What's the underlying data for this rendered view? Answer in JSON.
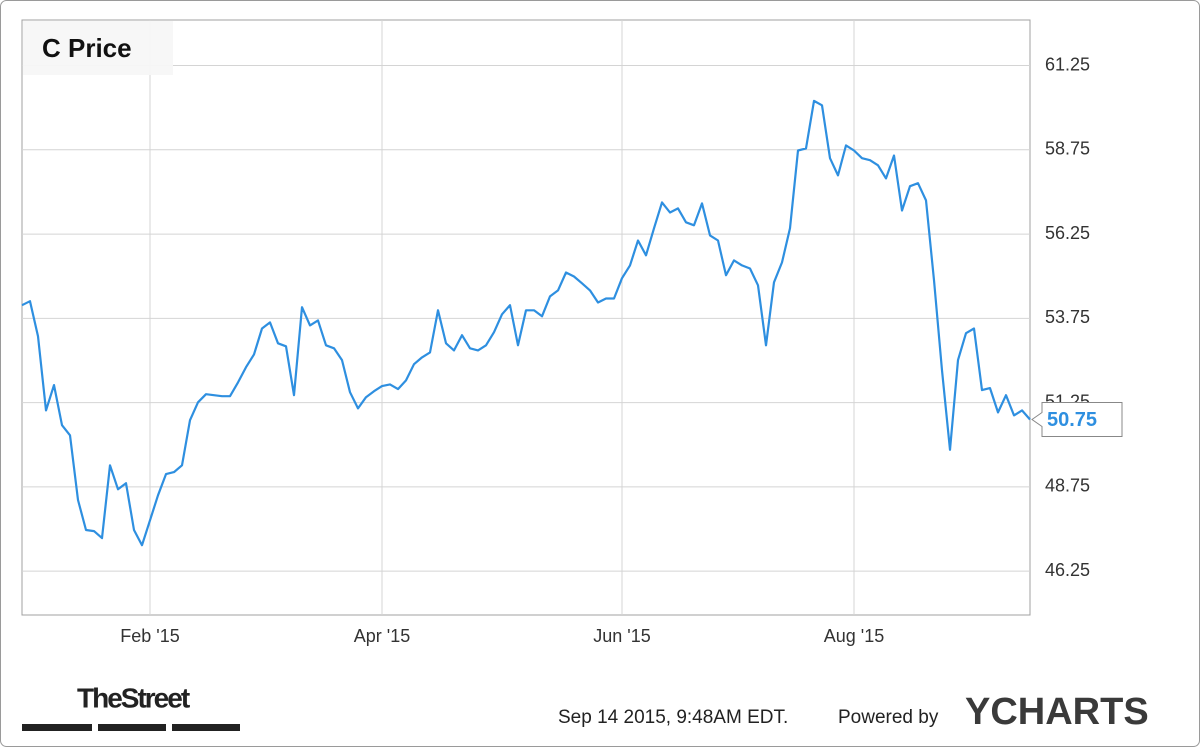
{
  "chart_data": {
    "type": "line",
    "title": "C Price",
    "categories": [
      null,
      null,
      null,
      null,
      null,
      null,
      null,
      null,
      null,
      null,
      null,
      null,
      null,
      null,
      null,
      null,
      "Feb '15",
      null,
      null,
      null,
      null,
      null,
      null,
      null,
      null,
      null,
      null,
      null,
      null,
      null,
      null,
      null,
      null,
      null,
      null,
      null,
      null,
      null,
      null,
      null,
      null,
      null,
      null,
      null,
      null,
      "Apr '15",
      null,
      null,
      null,
      null,
      null,
      null,
      null,
      null,
      null,
      null,
      null,
      null,
      null,
      null,
      null,
      null,
      null,
      null,
      null,
      null,
      null,
      null,
      null,
      null,
      null,
      null,
      null,
      null,
      null,
      "Jun '15",
      null,
      null,
      null,
      null,
      null,
      null,
      null,
      null,
      null,
      null,
      null,
      null,
      null,
      null,
      null,
      null,
      null,
      null,
      null,
      null,
      null,
      null,
      null,
      null,
      null,
      null,
      null,
      null,
      "Aug '15",
      null,
      null,
      null,
      null,
      null,
      null,
      null,
      null,
      null,
      null,
      null,
      null,
      null,
      null,
      null,
      null,
      null,
      null,
      null,
      null,
      null,
      null
    ],
    "values": [
      54.14,
      54.26,
      53.22,
      51.02,
      51.77,
      50.58,
      50.28,
      48.36,
      47.47,
      47.44,
      47.23,
      49.39,
      48.68,
      48.86,
      47.47,
      47.02,
      47.76,
      48.5,
      49.13,
      49.19,
      49.39,
      50.73,
      51.26,
      51.5,
      51.47,
      51.44,
      51.44,
      51.85,
      52.3,
      52.68,
      53.45,
      53.63,
      53.01,
      52.92,
      51.47,
      54.08,
      53.54,
      53.69,
      52.95,
      52.86,
      52.51,
      51.56,
      51.08,
      51.41,
      51.59,
      51.74,
      51.79,
      51.65,
      51.91,
      52.39,
      52.59,
      52.74,
      53.99,
      53.01,
      52.8,
      53.25,
      52.86,
      52.8,
      52.95,
      53.34,
      53.87,
      54.14,
      52.95,
      53.99,
      53.99,
      53.81,
      54.4,
      54.58,
      55.11,
      54.99,
      54.79,
      54.58,
      54.22,
      54.34,
      54.34,
      54.94,
      55.32,
      56.06,
      55.62,
      56.42,
      57.19,
      56.89,
      57.01,
      56.6,
      56.51,
      57.16,
      56.21,
      56.06,
      55.03,
      55.47,
      55.32,
      55.23,
      54.73,
      52.95,
      54.82,
      55.41,
      56.42,
      58.73,
      58.79,
      60.2,
      60.07,
      58.5,
      57.99,
      58.88,
      58.73,
      58.5,
      58.44,
      58.29,
      57.9,
      58.58,
      56.95,
      57.67,
      57.76,
      57.25,
      54.88,
      52.21,
      49.85,
      52.51,
      53.31,
      53.45,
      51.62,
      51.68,
      50.96,
      51.47,
      50.87,
      51.02,
      50.75
    ],
    "color": "#2e8fe0",
    "ylim": [
      44.95,
      62.6
    ],
    "yticks": [
      46.25,
      48.75,
      51.25,
      53.75,
      56.25,
      58.75,
      61.25
    ],
    "grid": true
  },
  "footer": {
    "logo": "TheStreet",
    "timestamp": "Sep 14 2015, 9:48AM EDT.",
    "powered_by": "Powered by",
    "brand": "YCHARTS"
  }
}
